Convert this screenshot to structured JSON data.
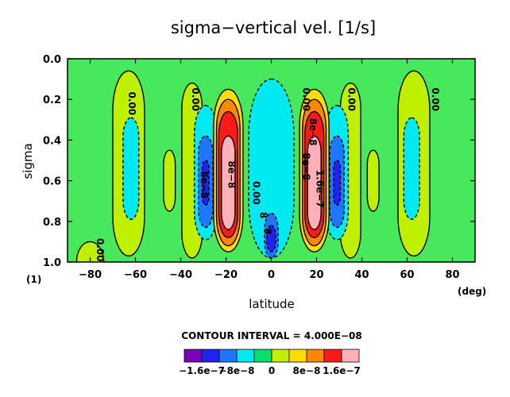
{
  "chart_data": {
    "type": "heatmap",
    "title": "sigma−vertical vel. [1/s]",
    "xlabel": "latitude",
    "ylabel": "sigma",
    "x_unit": "(deg)",
    "y_unit": "(1)",
    "xlim": [
      -90,
      90
    ],
    "ylim": [
      1.0,
      0.0
    ],
    "x_ticks": [
      -80,
      -60,
      -40,
      -20,
      0,
      20,
      40,
      60,
      80
    ],
    "x_tick_labels": [
      "−80",
      "−60",
      "−40",
      "−20",
      "0",
      "20",
      "40",
      "60",
      "80"
    ],
    "y_ticks": [
      0.0,
      0.2,
      0.4,
      0.6,
      0.8,
      1.0
    ],
    "y_tick_labels": [
      "0.0",
      "0.2",
      "0.4",
      "0.6",
      "0.8",
      "1.0"
    ],
    "contour_interval_text": "CONTOUR INTERVAL = 4.000E−08",
    "colorbar": {
      "levels": [
        -1.6e-07,
        -1.2e-07,
        -8e-08,
        -4e-08,
        0,
        4e-08,
        8e-08,
        1.2e-07,
        1.6e-07
      ],
      "colors": [
        "#7a00b8",
        "#2222ee",
        "#1e78ff",
        "#00e8f0",
        "#00e070",
        "#bff000",
        "#ffdd00",
        "#ff8800",
        "#ff1a1a",
        "#ffb0b8"
      ],
      "tick_labels": [
        "−1.6e−7",
        "−8e−8",
        "0",
        "8e−8",
        "1.6e−7"
      ],
      "tick_values": [
        -1.6e-07,
        -8e-08,
        0,
        8e-08,
        1.6e-07
      ]
    },
    "background_color": "#47e85c",
    "features": [
      {
        "lat": 0,
        "sigma": 0.8,
        "value": -1.6e-07,
        "color": "#7a00b8"
      },
      {
        "lat": -20,
        "sigma": 0.62,
        "value": 1.6e-07,
        "color": "#ffb0b8"
      },
      {
        "lat": 20,
        "sigma": 0.62,
        "value": 1.6e-07,
        "color": "#ffb0b8"
      },
      {
        "lat": -30,
        "sigma": 0.62,
        "value": -1.2e-07,
        "color": "#2222ee"
      },
      {
        "lat": 30,
        "sigma": 0.62,
        "value": -1.2e-07,
        "color": "#2222ee"
      },
      {
        "lat": -63,
        "sigma": 0.55,
        "value": -4e-08,
        "color": "#00e8f0"
      },
      {
        "lat": 63,
        "sigma": 0.55,
        "value": -4e-08,
        "color": "#00e8f0"
      },
      {
        "lat": -45,
        "sigma": 0.62,
        "value": 4e-08,
        "color": "#bff000"
      },
      {
        "lat": 45,
        "sigma": 0.62,
        "value": 4e-08,
        "color": "#bff000"
      }
    ],
    "contour_labels": [
      {
        "text": "0.00",
        "lat": -63,
        "sigma": 0.22
      },
      {
        "text": "0.00",
        "lat": -35,
        "sigma": 0.2
      },
      {
        "text": "0.00",
        "lat": 14,
        "sigma": 0.2
      },
      {
        "text": "0.00",
        "lat": 34,
        "sigma": 0.2
      },
      {
        "text": "0.00",
        "lat": 71,
        "sigma": 0.2
      },
      {
        "text": "0.00",
        "lat": -77,
        "sigma": 0.94
      },
      {
        "text": "0.00",
        "lat": -8,
        "sigma": 0.66
      },
      {
        "text": "8e−8",
        "lat": -31,
        "sigma": 0.62
      },
      {
        "text": "8e−8",
        "lat": -19,
        "sigma": 0.57
      },
      {
        "text": "8e−8",
        "lat": 14,
        "sigma": 0.53
      },
      {
        "text": "8e−8",
        "lat": 17,
        "sigma": 0.36
      },
      {
        "text": "1.6e−7",
        "lat": 20,
        "sigma": 0.64
      },
      {
        "text": "8",
        "lat": -5,
        "sigma": 0.77
      },
      {
        "text": "8",
        "lat": -3,
        "sigma": 0.85
      }
    ]
  }
}
